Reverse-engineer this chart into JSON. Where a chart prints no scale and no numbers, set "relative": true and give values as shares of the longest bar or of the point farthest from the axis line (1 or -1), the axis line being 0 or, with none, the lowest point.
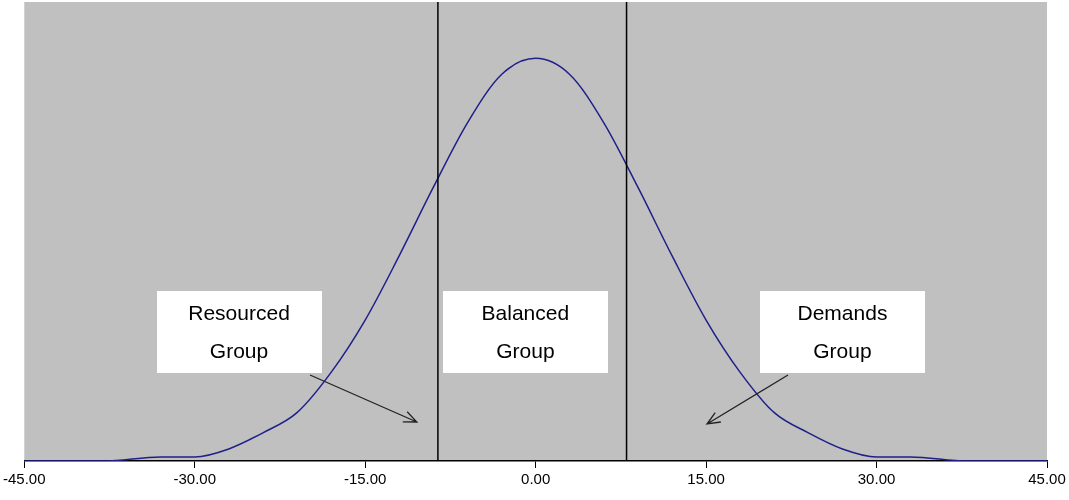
{
  "chart_data": {
    "type": "line",
    "relative": true,
    "marker": "none",
    "xlim": [
      -45,
      45
    ],
    "xticks": [
      {
        "value": -45,
        "label": "-45.00"
      },
      {
        "value": -30,
        "label": "-30.00"
      },
      {
        "value": -15,
        "label": "-15.00"
      },
      {
        "value": 0,
        "label": "0.00"
      },
      {
        "value": 15,
        "label": "15.00"
      },
      {
        "value": 30,
        "label": "30.00"
      },
      {
        "value": 45,
        "label": "45.00"
      }
    ],
    "x": [
      -45,
      -38,
      -33,
      -30,
      -27,
      -24,
      -21,
      -18,
      -15,
      -12,
      -9,
      -6,
      -3,
      0,
      3,
      6,
      9,
      12,
      15,
      18,
      21,
      24,
      27,
      30,
      33,
      38,
      45
    ],
    "series": [
      {
        "color": "#1f1f8a",
        "values": [
          0,
          0,
          0.01,
          0.01,
          0.03,
          0.07,
          0.12,
          0.22,
          0.35,
          0.51,
          0.68,
          0.84,
          0.96,
          1,
          0.96,
          0.84,
          0.68,
          0.51,
          0.35,
          0.22,
          0.12,
          0.07,
          0.03,
          0.01,
          0.01,
          0,
          0
        ]
      }
    ],
    "ref_lines": [
      {
        "axis": "x",
        "value": -8.6,
        "color": "#000000"
      },
      {
        "axis": "x",
        "value": 8.0,
        "color": "#000000"
      }
    ],
    "annotations": [
      "Resourced Group",
      "Balanced Group",
      "Demands Group"
    ]
  }
}
